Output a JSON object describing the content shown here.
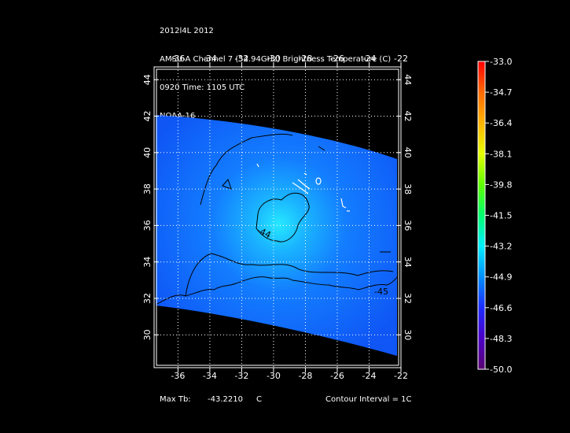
{
  "header": {
    "line1": "2012l4L 2012",
    "line2": "AMSU-A Channel 7 (54.94GHz) Brightness Temperature (C)",
    "line3": "0920 Time: 1105 UTC",
    "line4": "NOAA-16"
  },
  "axes": {
    "lon_ticks": [
      "-36",
      "-34",
      "-32",
      "-30",
      "-28",
      "-26",
      "-24",
      "-22"
    ],
    "lat_ticks": [
      "44",
      "42",
      "40",
      "38",
      "36",
      "34",
      "32",
      "30"
    ]
  },
  "contour_labels": [
    "-44",
    "-45"
  ],
  "colorbar": {
    "labels": [
      "-33.0",
      "-34.7",
      "-36.4",
      "-38.1",
      "-39.8",
      "-41.5",
      "-43.2",
      "-44.9",
      "-46.6",
      "-48.3",
      "-50.0"
    ],
    "colors": [
      "#ff0000",
      "#ff6a00",
      "#ffb400",
      "#e6ff00",
      "#5fff00",
      "#00ff6e",
      "#00f0ff",
      "#0090ff",
      "#1e2cff",
      "#4b00c8",
      "#5a0070"
    ]
  },
  "footer": {
    "max_label": "Max Tb:",
    "max_value": "-43.2210",
    "max_unit": "C",
    "contour_interval": "Contour Interval = 1C"
  },
  "chart_data": {
    "type": "heatmap",
    "title": "AMSU-A Channel 7 (54.94GHz) Brightness Temperature (C)",
    "xlim": [
      -37.5,
      -22
    ],
    "ylim": [
      28.2,
      44.7
    ],
    "x_ticks": [
      -36,
      -34,
      -32,
      -30,
      -28,
      -26,
      -24,
      -22
    ],
    "y_ticks": [
      30,
      32,
      34,
      36,
      38,
      40,
      42,
      44
    ],
    "colorbar_range": [
      -50.0,
      -33.0
    ],
    "max_tb": -43.221,
    "contour_interval": 1,
    "grid": true
  }
}
